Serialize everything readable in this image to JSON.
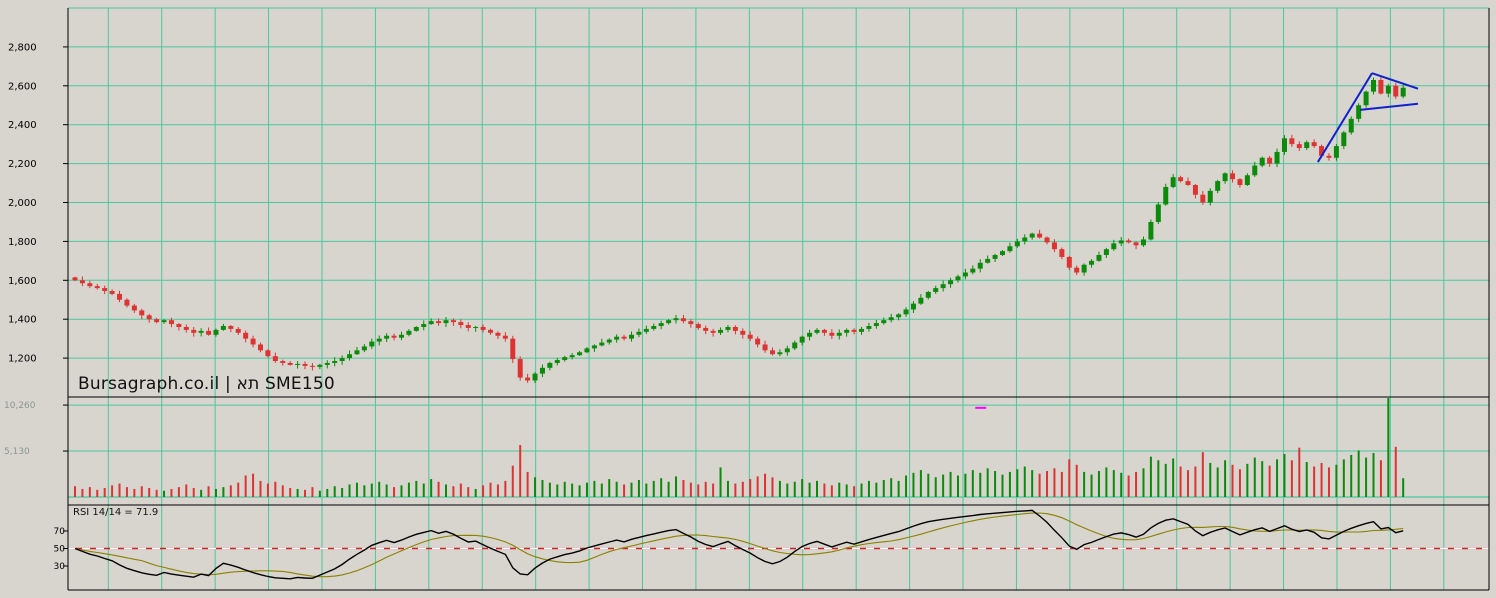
{
  "watermark": "Bursagraph.co.il | תא SME150",
  "rsi_label": "RSI 14/14 = 71.9",
  "colors": {
    "background": "#d8d5cf",
    "grid": "#4cc79e",
    "up": "#0b8a0b",
    "down": "#dd3333",
    "trendline": "#1122cc",
    "rsi_line": "#000000",
    "rsi_signal": "#8b8000",
    "mid_line_red": "#cc2222",
    "mid_line_white": "#ffffff",
    "axis_text": "#000000",
    "volume_text": "#8a968e",
    "separator": "#000000",
    "marker": "#ff00ff"
  },
  "chart_data": {
    "type": "candlestick",
    "title": "תא SME150",
    "source": "Bursagraph.co.il",
    "panels": [
      "price",
      "volume",
      "rsi"
    ],
    "price_axis": {
      "min": 1000,
      "max": 3000,
      "ticks": [
        {
          "value": 2800,
          "label": "2,800"
        },
        {
          "value": 2600,
          "label": "2,600"
        },
        {
          "value": 2400,
          "label": "2,400"
        },
        {
          "value": 2200,
          "label": "2,200"
        },
        {
          "value": 2000,
          "label": "2,000"
        },
        {
          "value": 1800,
          "label": "1,800"
        },
        {
          "value": 1600,
          "label": "1,600"
        },
        {
          "value": 1400,
          "label": "1,400"
        },
        {
          "value": 1200,
          "label": "1,200"
        }
      ]
    },
    "volume_axis": {
      "ticks": [
        {
          "value": 10260,
          "label": "10,260"
        },
        {
          "value": 5130,
          "label": "5,130"
        }
      ]
    },
    "rsi_axis": {
      "ticks": [
        {
          "value": 70,
          "label": "70"
        },
        {
          "value": 50,
          "label": "50"
        },
        {
          "value": 30,
          "label": "30"
        }
      ],
      "period": 14,
      "current": 71.9,
      "mid_level": 50
    },
    "closes": [
      1600,
      1585,
      1570,
      1560,
      1545,
      1530,
      1500,
      1470,
      1445,
      1420,
      1400,
      1385,
      1395,
      1375,
      1360,
      1345,
      1330,
      1340,
      1320,
      1345,
      1365,
      1350,
      1330,
      1300,
      1270,
      1240,
      1210,
      1185,
      1175,
      1165,
      1170,
      1160,
      1155,
      1165,
      1175,
      1185,
      1200,
      1220,
      1240,
      1260,
      1285,
      1300,
      1315,
      1305,
      1320,
      1340,
      1360,
      1375,
      1390,
      1380,
      1395,
      1385,
      1370,
      1355,
      1360,
      1345,
      1330,
      1315,
      1300,
      1195,
      1100,
      1085,
      1120,
      1150,
      1175,
      1190,
      1205,
      1215,
      1230,
      1250,
      1265,
      1280,
      1295,
      1310,
      1300,
      1320,
      1335,
      1350,
      1365,
      1380,
      1395,
      1405,
      1390,
      1375,
      1355,
      1340,
      1330,
      1345,
      1360,
      1340,
      1320,
      1300,
      1270,
      1240,
      1220,
      1230,
      1250,
      1280,
      1310,
      1330,
      1345,
      1330,
      1315,
      1330,
      1345,
      1335,
      1350,
      1365,
      1380,
      1395,
      1410,
      1425,
      1450,
      1480,
      1510,
      1540,
      1560,
      1580,
      1600,
      1620,
      1640,
      1660,
      1690,
      1710,
      1730,
      1750,
      1775,
      1800,
      1820,
      1840,
      1820,
      1795,
      1760,
      1720,
      1665,
      1640,
      1680,
      1700,
      1730,
      1760,
      1790,
      1805,
      1795,
      1780,
      1810,
      1900,
      1990,
      2080,
      2130,
      2110,
      2090,
      2040,
      2000,
      2060,
      2110,
      2150,
      2120,
      2090,
      2140,
      2190,
      2230,
      2200,
      2260,
      2330,
      2300,
      2280,
      2310,
      2290,
      2240,
      2230,
      2290,
      2360,
      2430,
      2500,
      2570,
      2630,
      2560,
      2600,
      2545,
      2590
    ],
    "volumes": [
      1200,
      900,
      1100,
      800,
      1000,
      1300,
      1500,
      1100,
      900,
      1200,
      1000,
      800,
      700,
      900,
      1100,
      1400,
      1000,
      800,
      1200,
      900,
      1100,
      1300,
      1600,
      2400,
      2600,
      1800,
      1500,
      1700,
      1300,
      1000,
      900,
      800,
      1100,
      700,
      900,
      1200,
      1000,
      1400,
      1600,
      1300,
      1500,
      1700,
      1400,
      1100,
      1300,
      1600,
      1800,
      1500,
      2000,
      1700,
      1400,
      1200,
      1500,
      1100,
      900,
      1300,
      1600,
      1400,
      1800,
      3500,
      5800,
      2800,
      2200,
      1900,
      1600,
      1400,
      1700,
      1500,
      1300,
      1600,
      1800,
      1500,
      2000,
      1700,
      1400,
      1600,
      1900,
      1500,
      1800,
      2100,
      1700,
      2300,
      1900,
      1600,
      1400,
      1700,
      1500,
      3300,
      1800,
      1500,
      1700,
      2000,
      2300,
      2600,
      2200,
      1800,
      1500,
      1700,
      2000,
      1600,
      1800,
      1500,
      1300,
      1600,
      1400,
      1200,
      1500,
      1800,
      1600,
      1900,
      2100,
      1800,
      2400,
      2700,
      3000,
      2600,
      2200,
      2500,
      2800,
      2400,
      2600,
      3000,
      2700,
      3200,
      2900,
      2500,
      2800,
      3100,
      3400,
      3000,
      2600,
      2900,
      3200,
      2800,
      4200,
      3600,
      2800,
      2500,
      2900,
      3300,
      3000,
      2700,
      2400,
      2800,
      3200,
      4500,
      4100,
      3700,
      4300,
      3400,
      3000,
      3400,
      5000,
      3800,
      3300,
      4100,
      3600,
      3100,
      3700,
      4400,
      4000,
      3500,
      4200,
      4800,
      4100,
      5500,
      3900,
      3400,
      3800,
      3300,
      3600,
      4200,
      4700,
      5200,
      4400,
      4900,
      4100,
      11200,
      5600,
      2100
    ],
    "trendlines": [
      {
        "from_index": 167.5,
        "from_price": 2208,
        "to_index": 174.8,
        "to_price": 2665
      },
      {
        "from_index": 174.8,
        "from_price": 2665,
        "to_index": 181,
        "to_price": 2585
      },
      {
        "from_index": 173.2,
        "from_price": 2476,
        "to_index": 181,
        "to_price": 2508
      }
    ],
    "marker": {
      "index": 122,
      "value": 9950
    }
  }
}
